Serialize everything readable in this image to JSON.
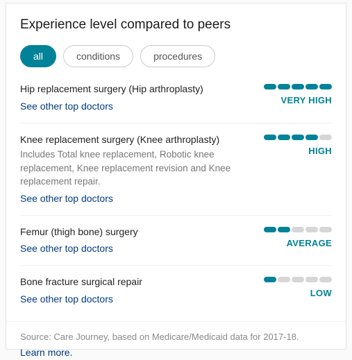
{
  "title": "Experience level compared to peers",
  "tabs": {
    "all": "all",
    "conditions": "conditions",
    "procedures": "procedures"
  },
  "link_text": "See other top doctors",
  "colors": {
    "accent": "#008298",
    "link": "#013a81",
    "muted": "#777",
    "seg_off": "#d6d6d6"
  },
  "items": [
    {
      "name": "Hip replacement surgery (Hip arthroplasty)",
      "desc": "",
      "filled": 5,
      "level": "VERY HIGH"
    },
    {
      "name": "Knee replacement surgery (Knee arthroplasty)",
      "desc": "Includes Total knee replacement, Robotic knee replacement, Knee replacement revision and Knee replacement repair.",
      "filled": 4,
      "level": "HIGH"
    },
    {
      "name": "Femur (thigh bone) surgery",
      "desc": "",
      "filled": 2,
      "level": "AVERAGE"
    },
    {
      "name": "Bone fracture surgical repair",
      "desc": "",
      "filled": 1,
      "level": "LOW"
    }
  ],
  "footer": {
    "source": "Source: Care Journey, based on Medicare/Medicaid data for 2017-18.",
    "learn": "Learn more."
  },
  "bar_segments": 5
}
